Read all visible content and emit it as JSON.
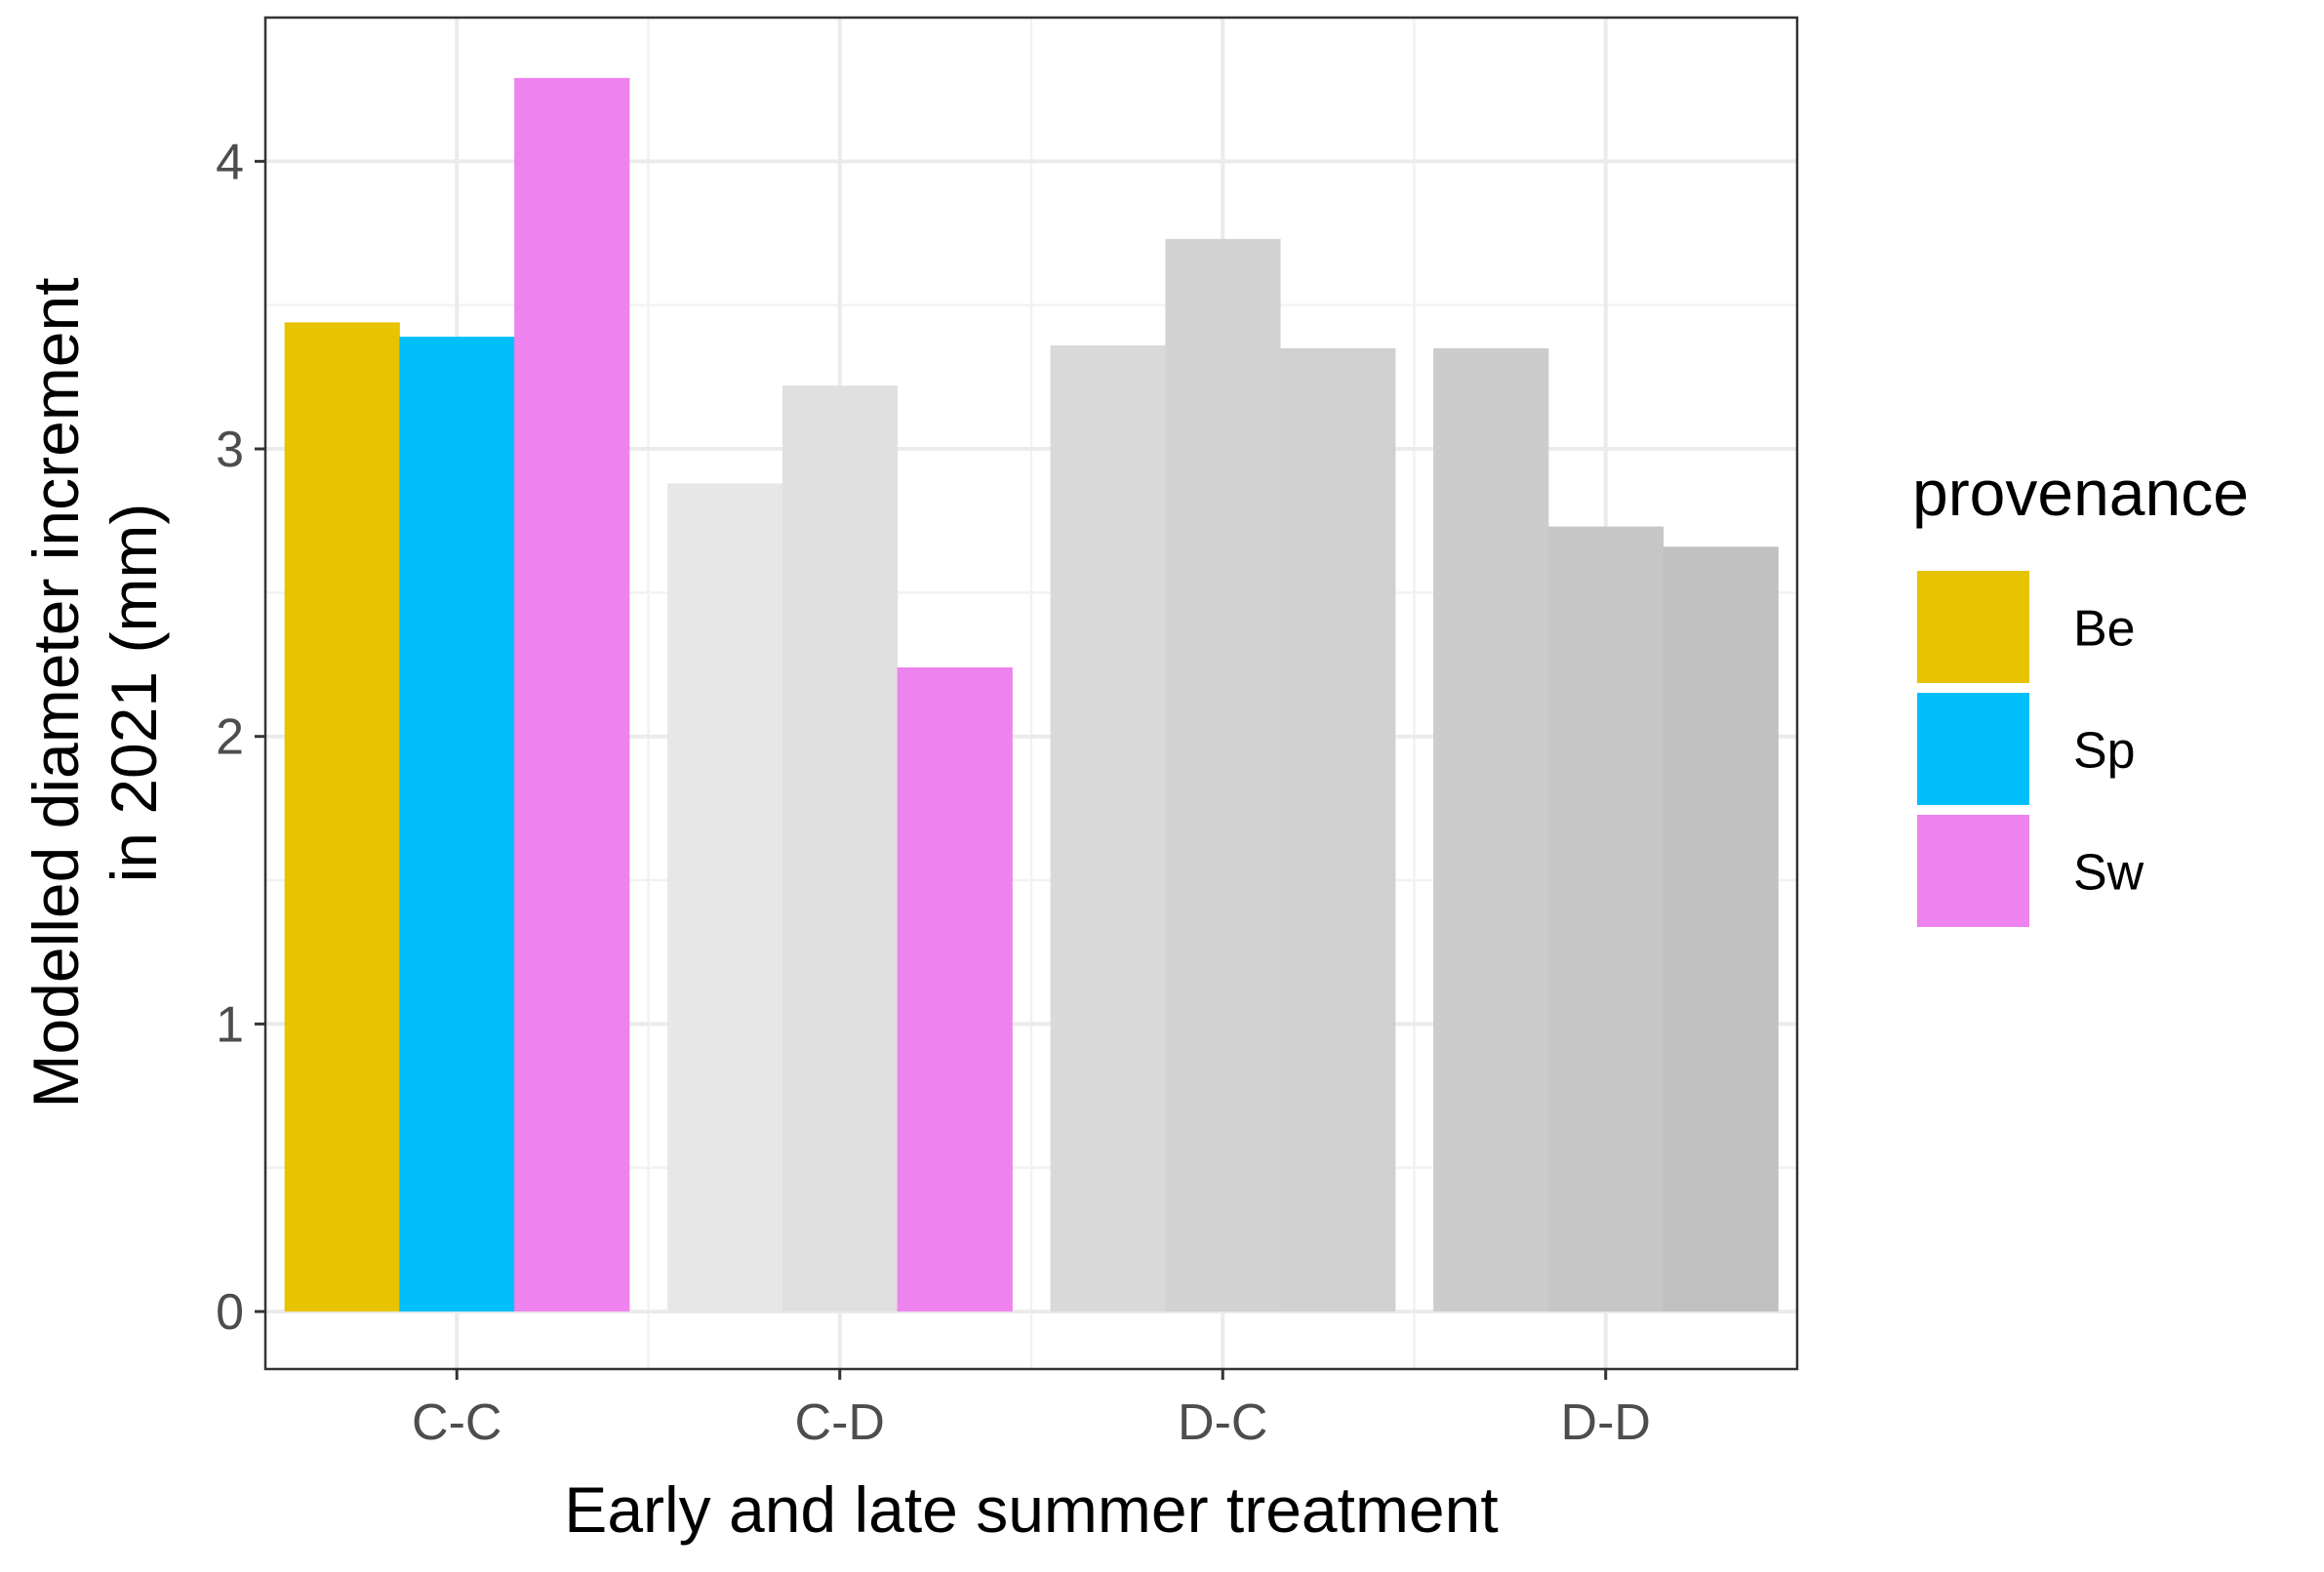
{
  "chart_data": {
    "type": "bar",
    "xlabel": "Early and late summer treatment",
    "ylabel_lines": [
      "Modelled diameter increment",
      "in 2021 (mm)"
    ],
    "categories": [
      "C-C",
      "C-D",
      "D-C",
      "D-D"
    ],
    "ylim": [
      -0.2,
      4.5
    ],
    "y_ticks": [
      0,
      1,
      2,
      3,
      4
    ],
    "y_tick_labels": [
      "0",
      "1",
      "2",
      "3",
      "4"
    ],
    "grid": true,
    "legend": {
      "title": "provenance",
      "position": "right",
      "entries": [
        {
          "name": "Be",
          "color": "#E8C400"
        },
        {
          "name": "Sp",
          "color": "#00BFFA"
        },
        {
          "name": "Sw",
          "color": "#EE82EE"
        }
      ]
    },
    "series": [
      {
        "name": "Be",
        "values": [
          3.44,
          2.88,
          3.36,
          3.35
        ]
      },
      {
        "name": "Sp",
        "values": [
          3.39,
          3.22,
          3.73,
          2.73
        ]
      },
      {
        "name": "Sw",
        "values": [
          4.29,
          2.24,
          3.35,
          2.66
        ]
      }
    ],
    "bar_colors": [
      [
        "#E8C400",
        "#00BFFA",
        "#EE82EE"
      ],
      [
        "#E7E7E7",
        "#E0E0E0",
        "#EE82EE"
      ],
      [
        "#D9D9D9",
        "#D3D3D3",
        "#D0D0D0"
      ],
      [
        "#CCCCCC",
        "#C6C6C6",
        "#C1C1C1"
      ]
    ]
  }
}
